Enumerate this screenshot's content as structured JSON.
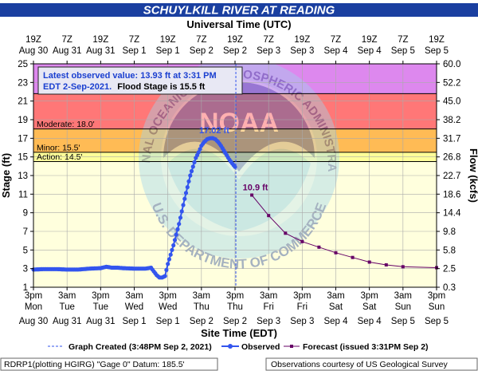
{
  "header": {
    "title": "SCHUYLKILL RIVER AT READING",
    "top_axis_title": "Universal Time (UTC)",
    "bottom_axis_title": "Site Time (EDT)"
  },
  "info_box": {
    "line1": "Latest observed value: 13.93 ft at 3:31 PM",
    "line2": "EDT 2-Sep-2021.",
    "line2_bold": "Flood Stage is 15.5 ft"
  },
  "watermark": {
    "top_text": "NATIONAL OCEANIC AND ATMOSPHERIC ADMINISTRATION",
    "bottom_text": "U.S. DEPARTMENT OF COMMERCE",
    "center_text": "NOAA"
  },
  "legend": {
    "created": "Graph Created (3:48PM Sep 2, 2021)",
    "observed": "Observed",
    "forecast": "Forecast (issued 3:31PM Sep 2)"
  },
  "footer": {
    "left": "RDRP1(plotting HGIRG) \"Gage 0\" Datum: 185.5'",
    "right": "Observations courtesy of US Geological Survey"
  },
  "colors": {
    "major": "#dd88ee",
    "moderate": "#ff7777",
    "minor": "#ffbb55",
    "action": "#ffff99",
    "plot_bg": "#ffffdd",
    "observed": "#3355ee",
    "forecast": "#660066",
    "created_line": "#3355ee"
  },
  "chart_data": {
    "type": "line",
    "ylabel_left": "Stage (ft)",
    "ylabel_right": "Flow (kcfs)",
    "ylim": [
      1,
      25
    ],
    "xlim_hours": [
      0,
      144
    ],
    "y_ticks": [
      "1",
      "3",
      "5",
      "7",
      "9",
      "11",
      "13",
      "15",
      "17",
      "19",
      "21",
      "23",
      "25"
    ],
    "y_ticks_right": [
      "0.3",
      "2.5",
      "5.8",
      "9.8",
      "14.4",
      "18.6",
      "22.7",
      "26.8",
      "31.7",
      "38.2",
      "45.0",
      "52.2",
      "60.0"
    ],
    "y_ticks_right_stage": [
      1,
      3,
      5,
      7,
      9,
      11,
      13,
      15,
      17,
      19,
      21,
      23,
      25
    ],
    "x_ticks_hours": [
      0,
      12,
      24,
      36,
      48,
      60,
      72,
      84,
      96,
      108,
      120,
      132,
      144
    ],
    "x_labels_bottom": [
      [
        "3pm",
        "Mon",
        "Aug 30"
      ],
      [
        "3am",
        "Tue",
        "Aug 31"
      ],
      [
        "3pm",
        "Tue",
        "Aug 31"
      ],
      [
        "3am",
        "Wed",
        "Sep 1"
      ],
      [
        "3pm",
        "Wed",
        "Sep 1"
      ],
      [
        "3am",
        "Thu",
        "Sep 2"
      ],
      [
        "3pm",
        "Thu",
        "Sep 2"
      ],
      [
        "3am",
        "Fri",
        "Sep 3"
      ],
      [
        "3pm",
        "Fri",
        "Sep 3"
      ],
      [
        "3am",
        "Sat",
        "Sep 4"
      ],
      [
        "3pm",
        "Sat",
        "Sep 4"
      ],
      [
        "3am",
        "Sun",
        "Sep 5"
      ],
      [
        "3pm",
        "Sun",
        "Sep 5"
      ]
    ],
    "x_labels_top": [
      [
        "19Z",
        "Aug 30"
      ],
      [
        "7Z",
        "Aug 31"
      ],
      [
        "19Z",
        "Aug 31"
      ],
      [
        "7Z",
        "Sep 1"
      ],
      [
        "19Z",
        "Sep 1"
      ],
      [
        "7Z",
        "Sep 2"
      ],
      [
        "19Z",
        "Sep 2"
      ],
      [
        "7Z",
        "Sep 3"
      ],
      [
        "19Z",
        "Sep 3"
      ],
      [
        "7Z",
        "Sep 4"
      ],
      [
        "19Z",
        "Sep 4"
      ],
      [
        "7Z",
        "Sep 5"
      ],
      [
        "19Z",
        "Sep 5"
      ]
    ],
    "thresholds": [
      {
        "name": "Major",
        "label": "",
        "from": 21.8,
        "to": 25,
        "color": "#dd88ee"
      },
      {
        "name": "Moderate",
        "label": "Moderate: 18.0'",
        "from": 18,
        "to": 21.8,
        "color": "#ff7777"
      },
      {
        "name": "Minor",
        "label": "Minor: 15.5'",
        "from": 15.5,
        "to": 18,
        "color": "#ffbb55"
      },
      {
        "name": "Action",
        "label": "Action: 14.5'",
        "from": 14.5,
        "to": 15.5,
        "color": "#ffff99"
      }
    ],
    "created_x_hours": 72.3,
    "annotations": [
      {
        "text": "17.02 ft",
        "x": 66,
        "y": 17.02,
        "color": "#3355ee"
      },
      {
        "text": "10.9 ft",
        "x": 77,
        "y": 10.9,
        "color": "#660066"
      }
    ],
    "observed": {
      "name": "Observed",
      "x": [
        0,
        4,
        8,
        12,
        16,
        20,
        24,
        26,
        28,
        30,
        32,
        36,
        40,
        42,
        44,
        45,
        46,
        47,
        48,
        50,
        52,
        54,
        56,
        58,
        59,
        60,
        61,
        62,
        63,
        64,
        65,
        66,
        67,
        68,
        69,
        70,
        71,
        72
      ],
      "y": [
        2.9,
        2.95,
        2.95,
        2.9,
        2.9,
        3.0,
        3.05,
        3.2,
        3.1,
        3.1,
        3.05,
        3.0,
        3.0,
        3.1,
        2.3,
        2.05,
        2.05,
        2.2,
        3.5,
        5.5,
        7.8,
        10.5,
        13.0,
        14.9,
        15.5,
        16.2,
        16.6,
        16.9,
        17.0,
        17.02,
        16.9,
        16.6,
        16.2,
        15.7,
        15.2,
        14.7,
        14.3,
        13.93
      ]
    },
    "forecast": {
      "name": "Forecast",
      "x": [
        78,
        84,
        90,
        96,
        102,
        108,
        114,
        120,
        126,
        132,
        144
      ],
      "y": [
        10.9,
        8.7,
        6.8,
        5.9,
        5.3,
        4.7,
        4.2,
        3.7,
        3.4,
        3.2,
        3.1
      ]
    }
  }
}
